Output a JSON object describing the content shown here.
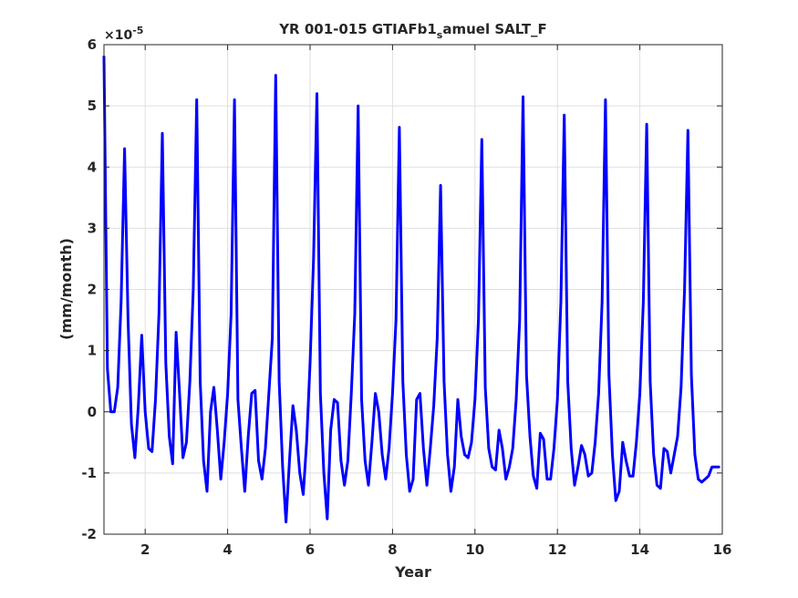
{
  "chart_data": {
    "type": "line",
    "title": "YR 001-015 GTIAFb1",
    "title_subscript": "s",
    "title_suffix": "amuel SALT_F",
    "xlabel": "Year",
    "ylabel": "(mm/month)",
    "y_exponent_base": "×10",
    "y_exponent": "-5",
    "xlim": [
      1,
      16
    ],
    "ylim": [
      -2,
      6
    ],
    "xticks": [
      2,
      4,
      6,
      8,
      10,
      12,
      14,
      16
    ],
    "yticks": [
      -2,
      -1,
      0,
      1,
      2,
      3,
      4,
      5,
      6
    ],
    "grid": true,
    "line_color": "#0000ff",
    "series": [
      {
        "x": [
          1.0,
          1.083,
          1.167,
          1.25,
          1.333,
          1.417,
          1.5,
          1.583,
          1.667,
          1.75,
          1.833,
          1.917,
          2.0,
          2.083,
          2.167,
          2.25,
          2.333,
          2.417,
          2.5,
          2.583,
          2.667,
          2.75,
          2.833,
          2.917,
          3.0,
          3.083,
          3.167,
          3.25,
          3.333,
          3.417,
          3.5,
          3.583,
          3.667,
          3.75,
          3.833,
          3.917,
          4.0,
          4.083,
          4.167,
          4.25,
          4.333,
          4.417,
          4.5,
          4.583,
          4.667,
          4.75,
          4.833,
          4.917,
          5.0,
          5.083,
          5.167,
          5.25,
          5.333,
          5.417,
          5.5,
          5.583,
          5.667,
          5.75,
          5.833,
          5.917,
          6.0,
          6.083,
          6.167,
          6.25,
          6.333,
          6.417,
          6.5,
          6.583,
          6.667,
          6.75,
          6.833,
          6.917,
          7.0,
          7.083,
          7.167,
          7.25,
          7.333,
          7.417,
          7.5,
          7.583,
          7.667,
          7.75,
          7.833,
          7.917,
          8.0,
          8.083,
          8.167,
          8.25,
          8.333,
          8.417,
          8.5,
          8.583,
          8.667,
          8.75,
          8.833,
          8.917,
          9.0,
          9.083,
          9.167,
          9.25,
          9.333,
          9.417,
          9.5,
          9.583,
          9.667,
          9.75,
          9.833,
          9.917,
          10.0,
          10.083,
          10.167,
          10.25,
          10.333,
          10.417,
          10.5,
          10.583,
          10.667,
          10.75,
          10.833,
          10.917,
          11.0,
          11.083,
          11.167,
          11.25,
          11.333,
          11.417,
          11.5,
          11.583,
          11.667,
          11.75,
          11.833,
          11.917,
          12.0,
          12.083,
          12.167,
          12.25,
          12.333,
          12.417,
          12.5,
          12.583,
          12.667,
          12.75,
          12.833,
          12.917,
          13.0,
          13.083,
          13.167,
          13.25,
          13.333,
          13.417,
          13.5,
          13.583,
          13.667,
          13.75,
          13.833,
          13.917,
          14.0,
          14.083,
          14.167,
          14.25,
          14.333,
          14.417,
          14.5,
          14.583,
          14.667,
          14.75,
          14.833,
          14.917,
          15.0,
          15.083,
          15.167,
          15.25,
          15.333,
          15.417,
          15.5,
          15.583,
          15.667,
          15.75,
          15.833,
          15.917
        ],
        "values": [
          5.8,
          0.7,
          0.0,
          0.0,
          0.4,
          1.8,
          4.3,
          1.5,
          -0.2,
          -0.75,
          0.1,
          1.25,
          0.0,
          -0.6,
          -0.65,
          0.2,
          1.6,
          4.55,
          0.8,
          -0.4,
          -0.85,
          1.3,
          0.3,
          -0.75,
          -0.5,
          0.5,
          2.0,
          5.1,
          0.5,
          -0.8,
          -1.3,
          0.0,
          0.4,
          -0.3,
          -1.1,
          -0.5,
          0.3,
          1.6,
          5.1,
          0.2,
          -0.6,
          -1.3,
          -0.4,
          0.3,
          0.35,
          -0.8,
          -1.1,
          -0.6,
          0.3,
          1.2,
          5.5,
          0.5,
          -0.9,
          -1.8,
          -0.8,
          0.1,
          -0.3,
          -1.0,
          -1.35,
          -0.5,
          0.8,
          2.5,
          5.2,
          0.3,
          -1.0,
          -1.75,
          -0.3,
          0.2,
          0.15,
          -0.8,
          -1.2,
          -0.8,
          0.3,
          1.6,
          5.0,
          0.2,
          -0.8,
          -1.2,
          -0.5,
          0.3,
          0.0,
          -0.7,
          -1.1,
          -0.6,
          0.3,
          1.5,
          4.65,
          0.5,
          -0.7,
          -1.3,
          -1.1,
          0.2,
          0.3,
          -0.6,
          -1.2,
          -0.6,
          0.1,
          1.2,
          3.7,
          0.5,
          -0.7,
          -1.3,
          -0.9,
          0.2,
          -0.4,
          -0.7,
          -0.75,
          -0.5,
          0.2,
          1.5,
          4.45,
          0.4,
          -0.6,
          -0.9,
          -0.95,
          -0.3,
          -0.6,
          -1.1,
          -0.9,
          -0.6,
          0.2,
          1.5,
          5.15,
          0.6,
          -0.4,
          -1.05,
          -1.25,
          -0.35,
          -0.45,
          -1.1,
          -1.1,
          -0.6,
          0.2,
          1.8,
          4.85,
          0.5,
          -0.6,
          -1.2,
          -0.9,
          -0.55,
          -0.7,
          -1.05,
          -1.0,
          -0.5,
          0.3,
          1.8,
          5.1,
          0.6,
          -0.7,
          -1.45,
          -1.3,
          -0.5,
          -0.8,
          -1.05,
          -1.05,
          -0.5,
          0.3,
          1.8,
          4.7,
          0.5,
          -0.7,
          -1.2,
          -1.25,
          -0.6,
          -0.65,
          -1.0,
          -0.7,
          -0.4,
          0.4,
          2.0,
          4.6,
          0.6,
          -0.7,
          -1.1,
          -1.15,
          -1.1,
          -1.05,
          -0.9,
          -0.9,
          -0.9
        ]
      }
    ]
  }
}
